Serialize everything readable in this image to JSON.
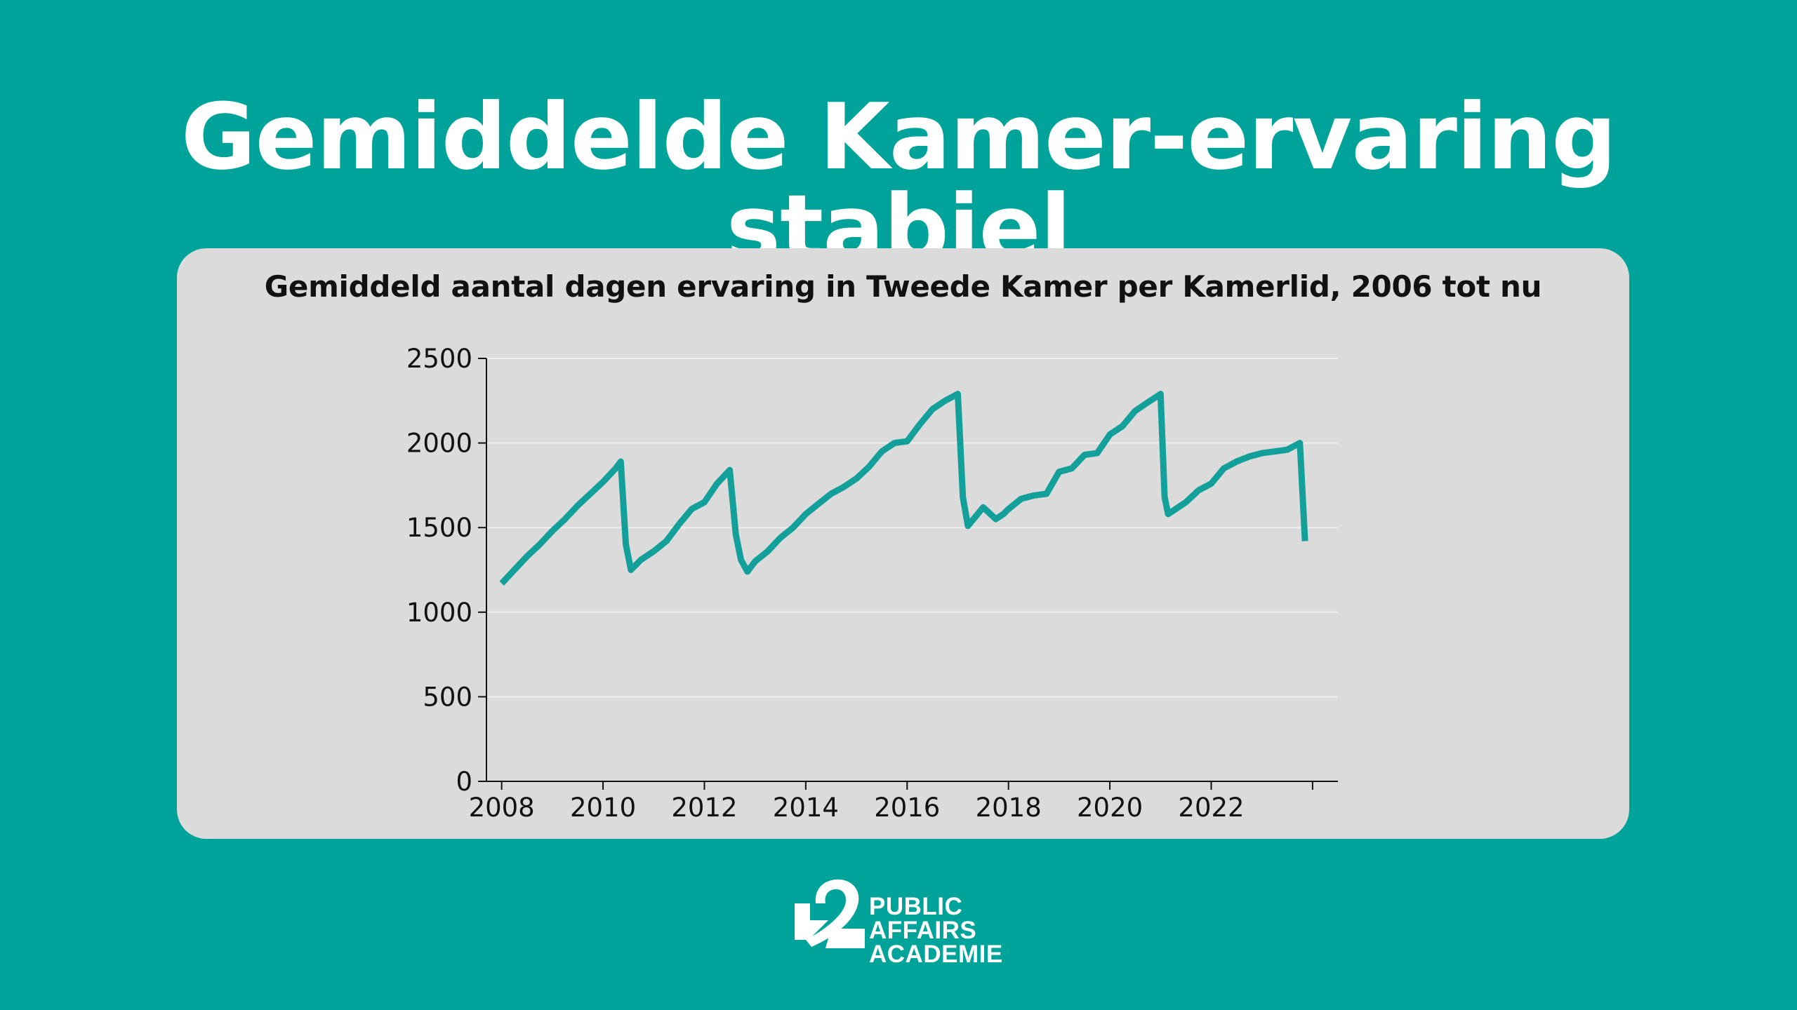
{
  "headline": "Gemiddelde Kamer-ervaring stabiel",
  "logo": {
    "icon": "public-affairs-academie-logo-icon",
    "lines": [
      "PUBLIC",
      "AFFAIRS",
      "ACADEMIE"
    ]
  },
  "colors": {
    "background": "#00a39a",
    "card": "#dbdbdb",
    "line": "#13a09a",
    "text": "#111111"
  },
  "chart_data": {
    "type": "line",
    "title": "Gemiddeld aantal dagen ervaring in Tweede Kamer per Kamerlid, 2006 tot nu",
    "xlabel": "",
    "ylabel": "",
    "xlim": [
      2007.7,
      2024.5
    ],
    "ylim": [
      0,
      2500
    ],
    "xticks": [
      2008,
      2010,
      2012,
      2014,
      2016,
      2018,
      2020,
      2022,
      2024
    ],
    "xtick_labels": [
      "2008",
      "2010",
      "2012",
      "2014",
      "2016",
      "2018",
      "2020",
      "2022",
      ""
    ],
    "yticks": [
      0,
      500,
      1000,
      1500,
      2000,
      2500
    ],
    "ytick_labels": [
      "0",
      "500",
      "1000",
      "1500",
      "2000",
      "2500"
    ],
    "grid": "horizontal",
    "legend": "none",
    "series": [
      {
        "x": [
          2008.0,
          2008.25,
          2008.5,
          2008.75,
          2009.0,
          2009.25,
          2009.5,
          2009.75,
          2010.0,
          2010.25,
          2010.35,
          2010.45,
          2010.55,
          2010.75,
          2011.0,
          2011.25,
          2011.5,
          2011.75,
          2012.0,
          2012.25,
          2012.5,
          2012.62,
          2012.72,
          2012.85,
          2013.0,
          2013.25,
          2013.5,
          2013.75,
          2014.0,
          2014.25,
          2014.5,
          2014.75,
          2015.0,
          2015.25,
          2015.5,
          2015.75,
          2016.0,
          2016.25,
          2016.5,
          2016.75,
          2017.0,
          2017.1,
          2017.2,
          2017.5,
          2017.75,
          2017.9,
          2018.0,
          2018.25,
          2018.5,
          2018.75,
          2019.0,
          2019.25,
          2019.5,
          2019.75,
          2020.0,
          2020.25,
          2020.5,
          2020.75,
          2021.0,
          2021.08,
          2021.15,
          2021.25,
          2021.5,
          2021.75,
          2022.0,
          2022.25,
          2022.5,
          2022.75,
          2023.0,
          2023.25,
          2023.5,
          2023.75,
          2023.85
        ],
        "values": [
          1170,
          1250,
          1330,
          1400,
          1480,
          1550,
          1630,
          1700,
          1770,
          1850,
          1890,
          1400,
          1250,
          1310,
          1360,
          1420,
          1520,
          1610,
          1650,
          1760,
          1840,
          1460,
          1310,
          1240,
          1300,
          1360,
          1440,
          1500,
          1580,
          1640,
          1700,
          1740,
          1790,
          1860,
          1950,
          2000,
          2010,
          2110,
          2200,
          2250,
          2290,
          1680,
          1510,
          1620,
          1550,
          1580,
          1610,
          1670,
          1690,
          1700,
          1830,
          1850,
          1930,
          1940,
          2050,
          2100,
          2190,
          2240,
          2290,
          1680,
          1580,
          1600,
          1650,
          1720,
          1760,
          1850,
          1890,
          1920,
          1940,
          1950,
          1960,
          2000,
          1420
        ]
      }
    ]
  }
}
